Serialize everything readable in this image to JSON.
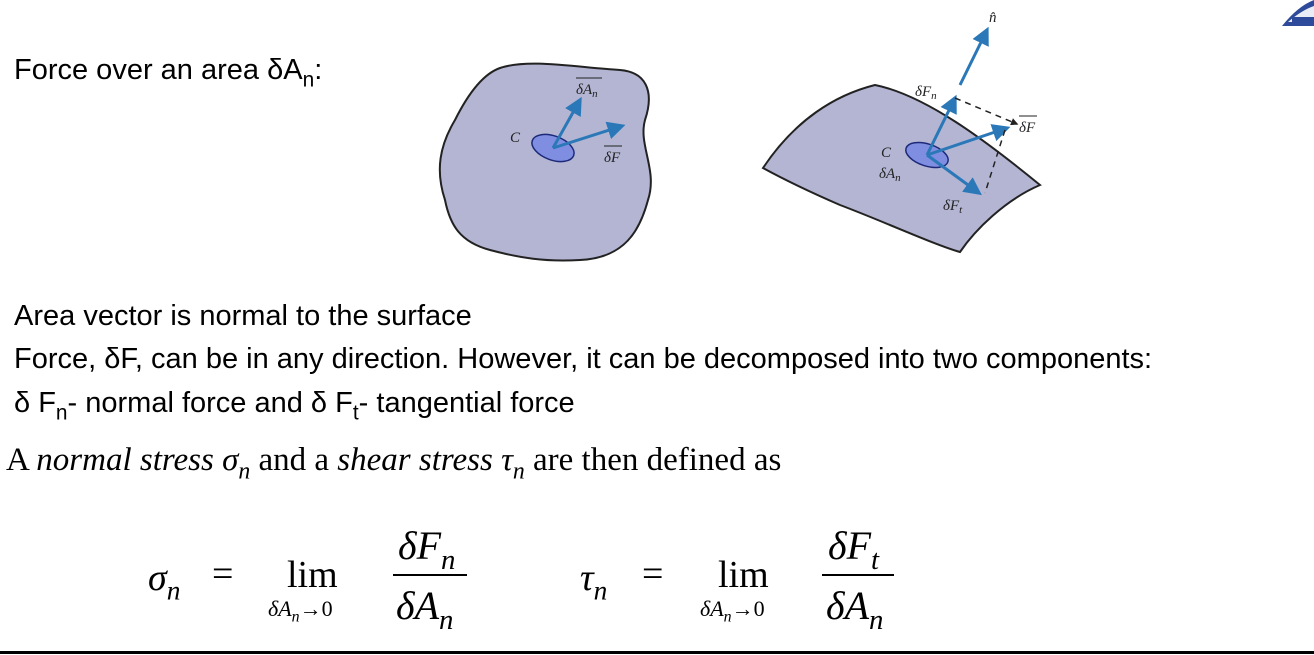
{
  "heading": {
    "prefix": "Force over an area δA",
    "sub": "n",
    "suffix": ":"
  },
  "figure_left": {
    "label_C": "C",
    "label_dA": "δA",
    "label_dA_sub": "n",
    "label_dF": "δF"
  },
  "figure_right": {
    "label_n": "n̂",
    "label_dFn": "δF",
    "label_dFn_sub": "n",
    "label_dF": "δF",
    "label_C": "C",
    "label_dAn": "δA",
    "label_dAn_sub": "n",
    "label_dFt": "δF",
    "label_dFt_sub": "t"
  },
  "bullets": {
    "line1": "Area vector is normal to the surface",
    "line2": "Force, δF, can be in any direction. However, it can be decomposed into two components:",
    "line3": {
      "p1": "δ F",
      "sub1": "n",
      "p2": "- normal  force and δ F",
      "sub2": "t",
      "p3": "- tangential force"
    }
  },
  "definition": {
    "p1": "A ",
    "p2": "normal stress",
    "p3": " σ",
    "p3_sub": "n",
    "p4": " and a ",
    "p5": "shear stress",
    "p6": " τ",
    "p6_sub": "n",
    "p7": " are then defined as"
  },
  "eq_sigma": {
    "lhs": "σ",
    "lhs_sub": "n",
    "eq": "=",
    "lim": "lim",
    "limit_below": "δA",
    "limit_below_sub": "n",
    "limit_arrow": "→0",
    "num": "δF",
    "num_sub": "n",
    "den": "δA",
    "den_sub": "n"
  },
  "eq_tau": {
    "lhs": "τ",
    "lhs_sub": "n",
    "eq": "=",
    "lim": "lim",
    "limit_below": "δA",
    "limit_below_sub": "n",
    "limit_arrow": "→0",
    "num": "δF",
    "num_sub": "t",
    "den": "δA",
    "den_sub": "n"
  },
  "colors": {
    "surface": "#b3b5d3",
    "patch": "#7f8ee0",
    "arrow": "#2a78b8"
  }
}
